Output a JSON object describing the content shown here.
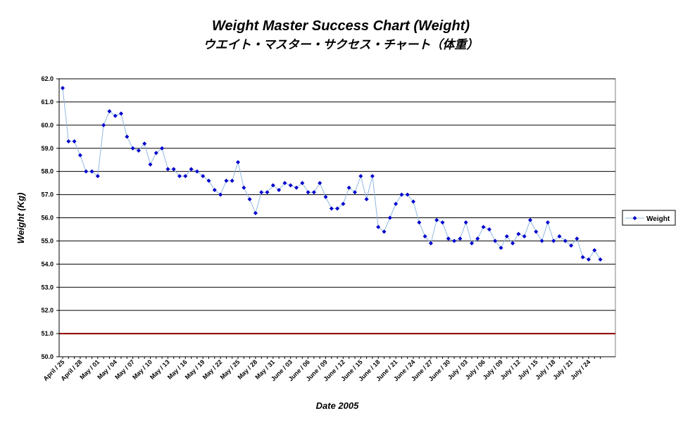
{
  "chart_data": {
    "type": "line",
    "title": "Weight Master Success Chart (Weight)",
    "subtitle": "ウエイト・マスター・サクセス・チャート（体重）",
    "xlabel": "Date 2005",
    "ylabel": "Weight (Kg)",
    "ylim": [
      50.0,
      62.0
    ],
    "yticks": [
      "50.0",
      "51.0",
      "52.0",
      "53.0",
      "54.0",
      "55.0",
      "56.0",
      "57.0",
      "58.0",
      "59.0",
      "60.0",
      "61.0",
      "62.0"
    ],
    "xtick_labels": [
      "April / 25",
      "April / 28",
      "May / 01",
      "May / 04",
      "May / 07",
      "May / 10",
      "May / 13",
      "May / 16",
      "May / 19",
      "May / 22",
      "May / 25",
      "May / 28",
      "May / 31",
      "June / 03",
      "June / 06",
      "June / 09",
      "June / 12",
      "June / 15",
      "June / 18",
      "June / 21",
      "June / 24",
      "June / 27",
      "June / 30",
      "July / 03",
      "July / 06",
      "July / 09",
      "July / 12",
      "July / 15",
      "July / 18",
      "July / 21",
      "July / 24"
    ],
    "grid": true,
    "target_line": {
      "value": 51.0,
      "color": "#8B0000"
    },
    "legend_position": "right",
    "series": [
      {
        "name": "Weight",
        "color": "#0000CC",
        "line_color": "#8FB8E0",
        "values": [
          61.6,
          59.3,
          59.3,
          58.7,
          58.0,
          58.0,
          57.8,
          60.0,
          60.6,
          60.4,
          60.5,
          59.5,
          59.0,
          58.9,
          59.2,
          58.3,
          58.8,
          59.0,
          58.1,
          58.1,
          57.8,
          57.8,
          58.1,
          58.0,
          57.8,
          57.6,
          57.2,
          57.0,
          57.6,
          57.6,
          58.4,
          57.3,
          56.8,
          56.2,
          57.1,
          57.1,
          57.4,
          57.2,
          57.5,
          57.4,
          57.3,
          57.5,
          57.1,
          57.1,
          57.5,
          56.9,
          56.4,
          56.4,
          56.6,
          57.3,
          57.1,
          57.8,
          56.8,
          57.8,
          55.6,
          55.4,
          56.0,
          56.6,
          57.0,
          57.0,
          56.7,
          55.8,
          55.2,
          54.9,
          55.9,
          55.8,
          55.1,
          55.0,
          55.1,
          55.8,
          54.9,
          55.1,
          55.6,
          55.5,
          55.0,
          54.7,
          55.2,
          54.9,
          55.3,
          55.2,
          55.9,
          55.4,
          55.0,
          55.8,
          55.0,
          55.2,
          55.0,
          54.8,
          55.1,
          54.3,
          54.2,
          54.6,
          54.2
        ]
      }
    ]
  }
}
